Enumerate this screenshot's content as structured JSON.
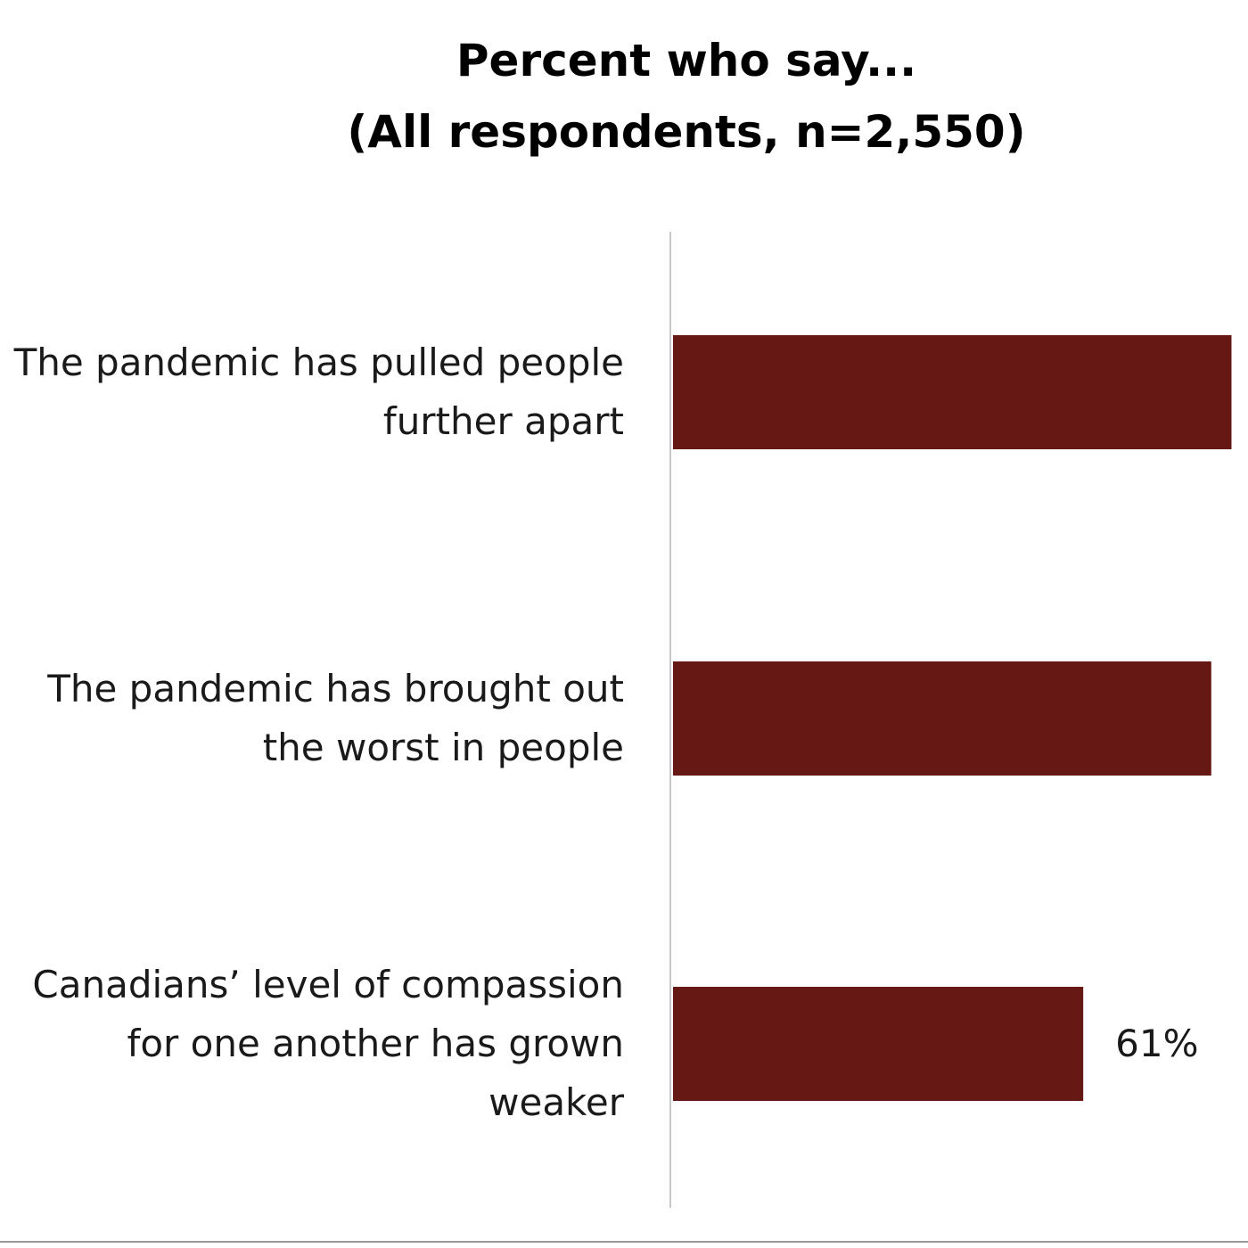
{
  "chart_data": {
    "type": "bar",
    "orientation": "horizontal",
    "title": [
      "Percent who say...",
      "(All respondents, n=2,550)"
    ],
    "categories": [
      [
        "The pandemic has pulled people",
        "further apart"
      ],
      [
        "The pandemic has brought out",
        "the worst in people"
      ],
      [
        "Canadians’ level of compassion",
        "for one another has grown",
        "weaker"
      ]
    ],
    "values": [
      83,
      80,
      61
    ],
    "value_labels": [
      "",
      "",
      "61%"
    ],
    "xlim": [
      0,
      100
    ],
    "grid": false,
    "legend": "none",
    "bar_color": "#661814",
    "axis_color": "#c8c8c8"
  }
}
